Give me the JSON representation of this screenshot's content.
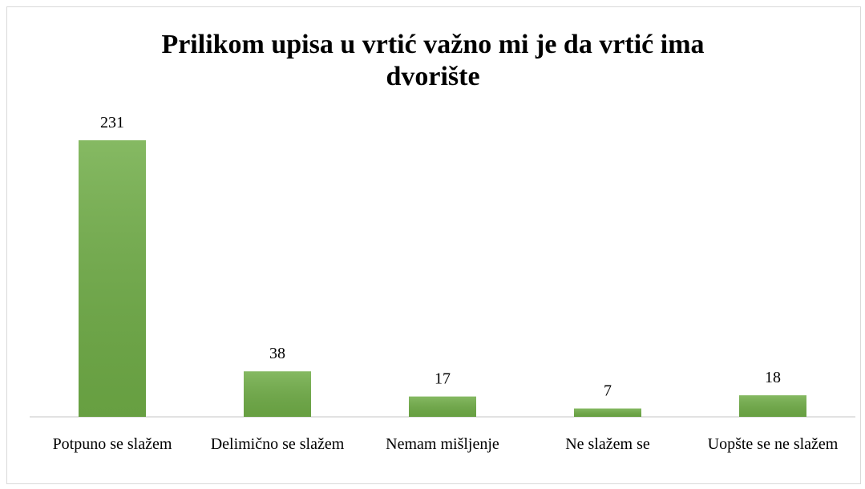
{
  "chart_data": {
    "type": "bar",
    "title": "Prilikom upisa u vrtić važno mi je da vrtić ima dvorište",
    "categories": [
      "Potpuno se slažem",
      "Delimično se slažem",
      "Nemam mišljenje",
      "Ne slažem se",
      "Uopšte se ne slažem"
    ],
    "values": [
      231,
      38,
      17,
      7,
      18
    ],
    "color": "#70ad47"
  }
}
